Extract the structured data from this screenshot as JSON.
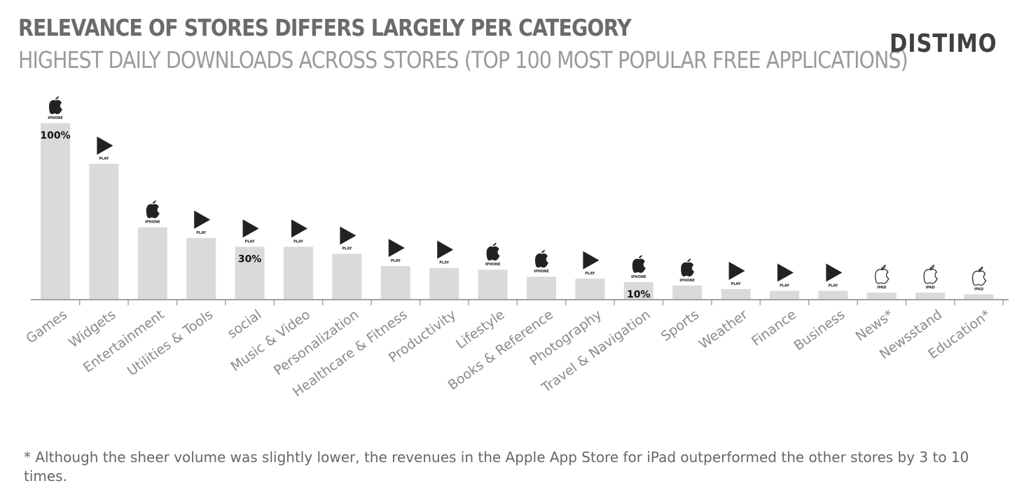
{
  "header": {
    "title": "RELEVANCE OF STORES DIFFERS LARGELY PER CATEGORY",
    "subtitle": "HIGHEST DAILY DOWNLOADS ACROSS STORES (TOP 100 MOST POPULAR FREE APPLICATIONS)",
    "logo_text": "DISTIMO"
  },
  "footnote": "* Although the sheer volume was slightly lower, the revenues in the Apple App Store for iPad outperformed the other stores by 3 to 10 times.",
  "colors": {
    "bar": "#d9dbd9",
    "axis": "#9ea6a3",
    "tick_label": "#8a8a8a",
    "icon": "#222222",
    "value_label": "#111111"
  },
  "chart_data": {
    "type": "bar",
    "title": "HIGHEST DAILY DOWNLOADS ACROSS STORES (TOP 100 MOST POPULAR FREE APPLICATIONS)",
    "ylabel": "",
    "xlabel": "",
    "ylim": [
      0,
      100
    ],
    "grid": false,
    "categories": [
      "Games",
      "Widgets",
      "Entertainment",
      "Utilities & Tools",
      "social",
      "Music & Video",
      "Personalization",
      "Healthcare & Fitness",
      "Productivity",
      "Lifestyle",
      "Books & Reference",
      "Photography",
      "Travel & Navigation",
      "Sports",
      "Weather",
      "Finance",
      "Business",
      "News*",
      "Newsstand",
      "Education*"
    ],
    "values": [
      100,
      77,
      41,
      35,
      30,
      30,
      26,
      19,
      18,
      17,
      13,
      12,
      10,
      8,
      6,
      5,
      5,
      4,
      4,
      3
    ],
    "stores": [
      "IPHONE",
      "PLAY",
      "IPHONE",
      "PLAY",
      "PLAY",
      "PLAY",
      "PLAY",
      "PLAY",
      "PLAY",
      "IPHONE",
      "IPHONE",
      "PLAY",
      "IPHONE",
      "IPHONE",
      "PLAY",
      "PLAY",
      "PLAY",
      "IPAD",
      "IPAD",
      "IPAD"
    ],
    "store_icons": {
      "IPHONE": "apple-solid-icon",
      "PLAY": "play-triangle-icon",
      "IPAD": "apple-outline-icon"
    },
    "value_labels": [
      {
        "index": 0,
        "text": "100%"
      },
      {
        "index": 4,
        "text": "30%"
      },
      {
        "index": 12,
        "text": "10%"
      }
    ]
  }
}
